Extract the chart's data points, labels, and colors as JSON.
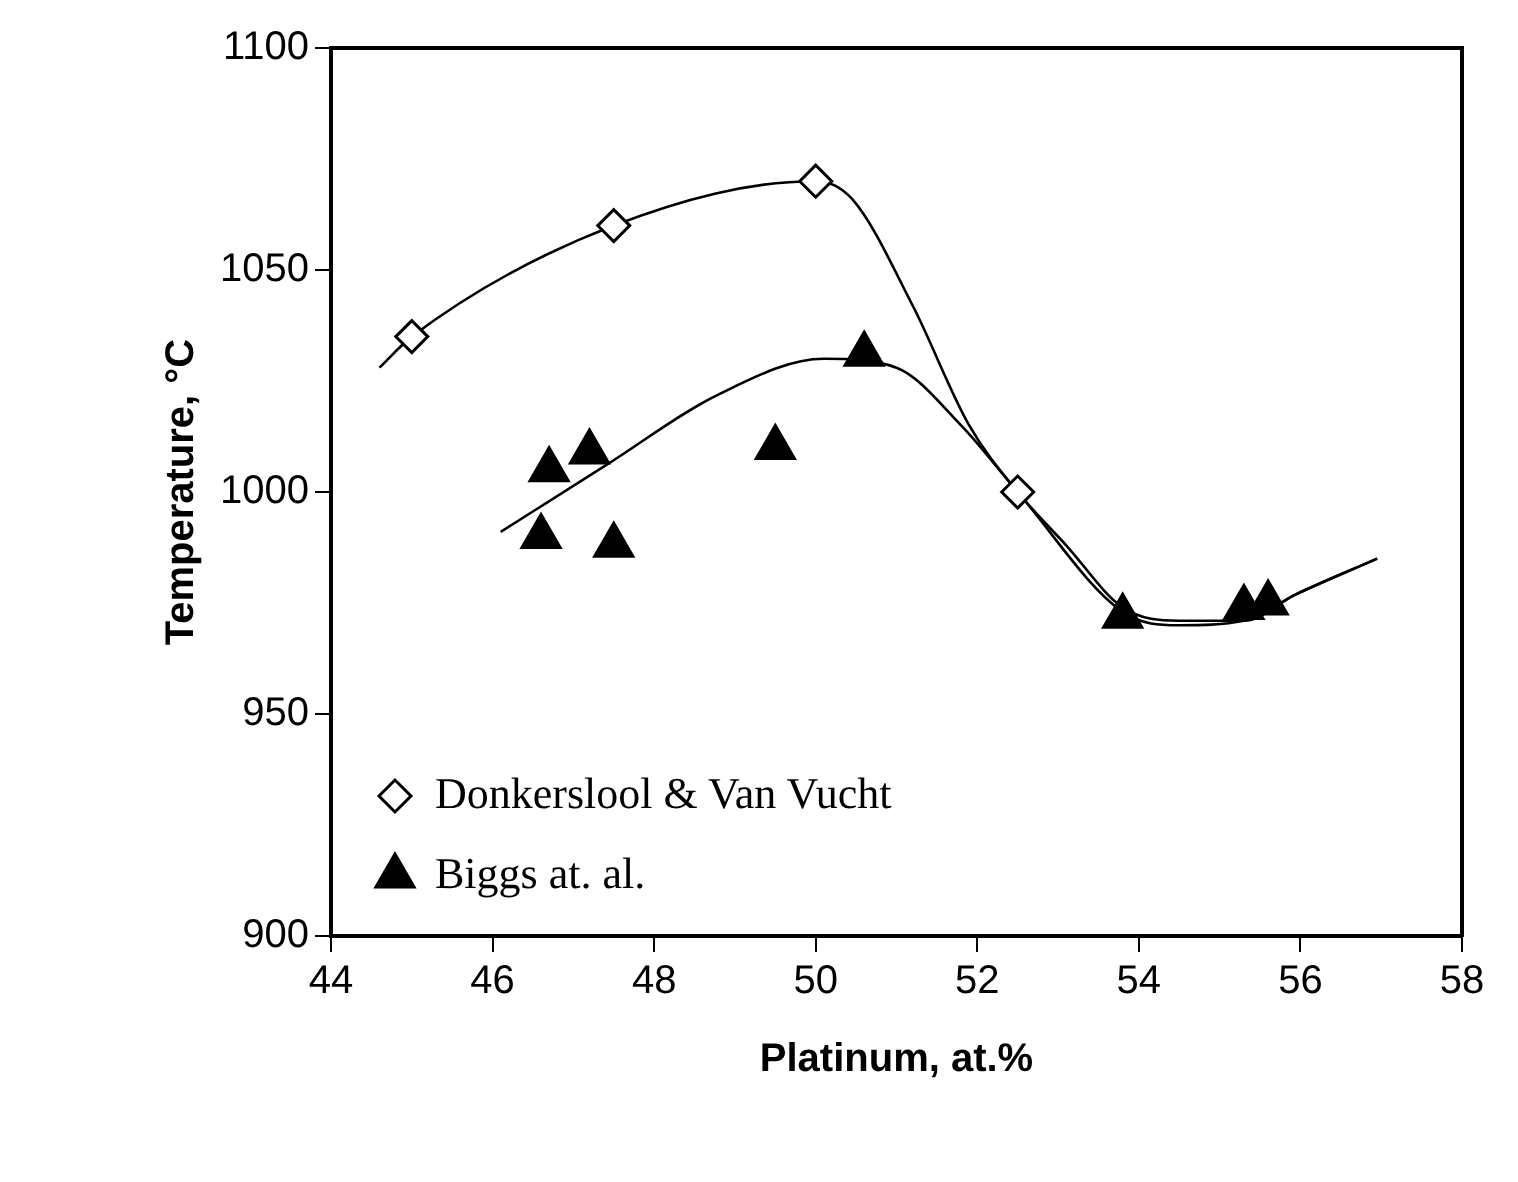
{
  "chart_data": {
    "type": "scatter",
    "xlabel": "Platinum, at.%",
    "ylabel": "Temperature, °C",
    "xlim": [
      44,
      58
    ],
    "xticks": [
      44,
      46,
      48,
      50,
      52,
      54,
      56,
      58
    ],
    "ylim": [
      900,
      1100
    ],
    "yticks": [
      900,
      950,
      1000,
      1050,
      1100
    ],
    "grid": false,
    "legend": "bottom left",
    "series": [
      {
        "name": "Donkerslool & Van Vucht",
        "marker": "diamond",
        "color": "#000000",
        "x": [
          45.0,
          47.5,
          50.0,
          52.5
        ],
        "values": [
          1035,
          1060,
          1070,
          1000
        ]
      },
      {
        "name": "Biggs at. al.",
        "marker": "triangle",
        "color": "#000000",
        "x": [
          46.6,
          46.7,
          47.2,
          47.5,
          49.5,
          50.6,
          53.8,
          55.3,
          55.6
        ],
        "values": [
          990,
          1005,
          1009,
          988,
          1010,
          1031,
          972,
          974,
          975
        ]
      },
      {
        "type": "line",
        "marker": "none",
        "color": "#000000",
        "x": [
          44.6,
          45.0,
          47.5,
          50.0,
          50.45,
          51.2,
          51.9,
          52.5,
          53.1,
          53.8,
          54.5,
          55.3,
          55.95,
          56.95
        ],
        "values": [
          1028,
          1035,
          1060,
          1070,
          1066,
          1042,
          1015,
          1000,
          988,
          974,
          971,
          971,
          977,
          985
        ]
      },
      {
        "type": "line",
        "marker": "none",
        "color": "#000000",
        "x": [
          46.1,
          47.4,
          48.8,
          50.1,
          51.0,
          51.8,
          52.5,
          53.8,
          54.5,
          55.3,
          55.95,
          56.95
        ],
        "values": [
          991,
          1006,
          1022,
          1030,
          1028,
          1015,
          1000,
          973,
          970,
          971,
          977,
          985
        ]
      }
    ]
  }
}
